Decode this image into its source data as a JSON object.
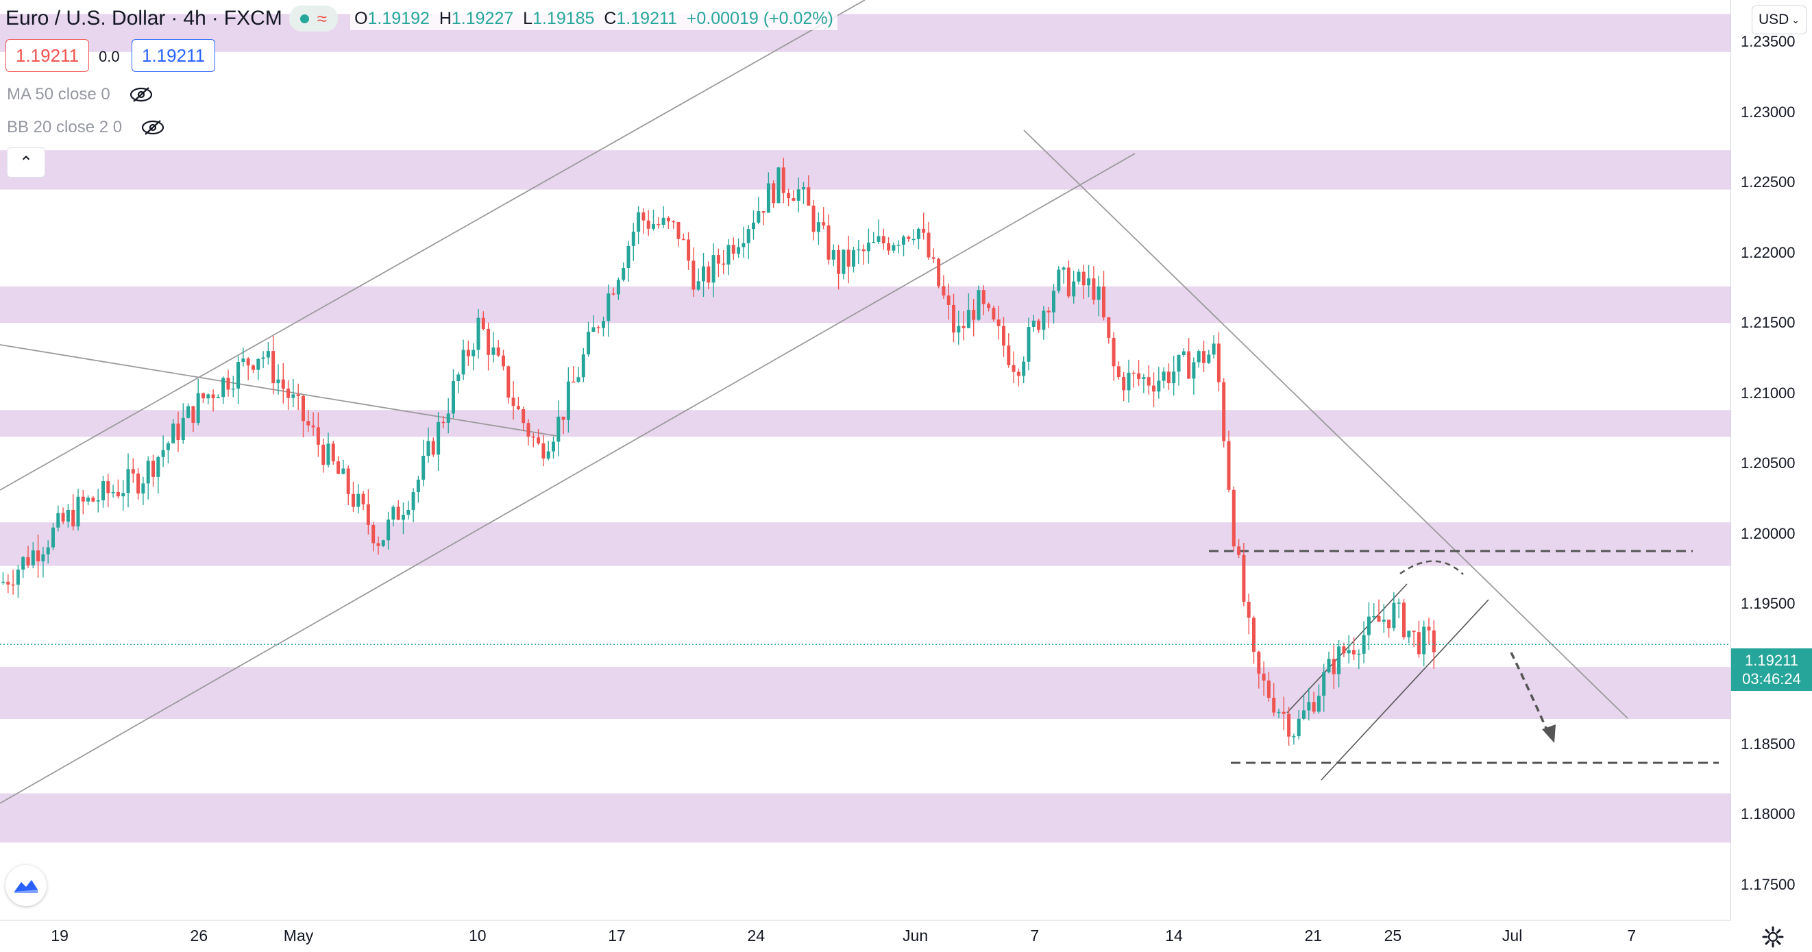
{
  "header": {
    "symbol": "Euro / U.S. Dollar",
    "interval": "4h",
    "exchange": "FXCM",
    "open_label": "O",
    "open": "1.19192",
    "high_label": "H",
    "high": "1.19227",
    "low_label": "L",
    "low": "1.19185",
    "close_label": "C",
    "close": "1.19211",
    "change": "+0.00019 (+0.02%)"
  },
  "trade": {
    "sell_price": "1.19211",
    "spread": "0.0",
    "buy_price": "1.19211"
  },
  "indicators": [
    {
      "label": "MA 50 close 0"
    },
    {
      "label": "BB 20 close 2 0"
    }
  ],
  "price_axis": {
    "currency": "USD",
    "current_price": "1.19211",
    "countdown": "03:46:24",
    "labels": [
      "1.23500",
      "1.23000",
      "1.22500",
      "1.22000",
      "1.21500",
      "1.21000",
      "1.20500",
      "1.20000",
      "1.19500",
      "1.19000",
      "1.18500",
      "1.18000",
      "1.17500"
    ]
  },
  "time_axis": {
    "labels": [
      "19",
      "26",
      "May",
      "10",
      "17",
      "24",
      "Jun",
      "7",
      "14",
      "21",
      "25",
      "Jul",
      "7"
    ]
  },
  "colors": {
    "up": "#26a69a",
    "down": "#ef5350",
    "zone": "#e8d5ee",
    "trendline": "#9b9b9b",
    "dashed": "#555555",
    "price_line": "#26a69a"
  },
  "chart_data": {
    "type": "candlestick",
    "symbol": "EURUSD",
    "timeframe": "4h",
    "ylim": [
      1.1725,
      1.238
    ],
    "zones": [
      [
        1.2343,
        1.237
      ],
      [
        1.2245,
        1.2273
      ],
      [
        1.215,
        1.2176
      ],
      [
        1.2069,
        1.2088
      ],
      [
        1.1977,
        1.2008
      ],
      [
        1.1868,
        1.1905
      ],
      [
        1.178,
        1.1815
      ]
    ],
    "levels": [
      1.19975,
      1.185
    ],
    "current_price": 1.19211,
    "anchors": [
      {
        "date": "2021-04-16",
        "price": 1.1965
      },
      {
        "date": "2021-04-20",
        "price": 1.202
      },
      {
        "date": "2021-04-23",
        "price": 1.204
      },
      {
        "date": "2021-04-26",
        "price": 1.2095
      },
      {
        "date": "2021-04-29",
        "price": 1.213
      },
      {
        "date": "2021-05-03",
        "price": 1.204
      },
      {
        "date": "2021-05-05",
        "price": 1.1995
      },
      {
        "date": "2021-05-07",
        "price": 1.204
      },
      {
        "date": "2021-05-10",
        "price": 1.215
      },
      {
        "date": "2021-05-12",
        "price": 1.2085
      },
      {
        "date": "2021-05-13",
        "price": 1.206
      },
      {
        "date": "2021-05-14",
        "price": 1.208
      },
      {
        "date": "2021-05-18",
        "price": 1.2225
      },
      {
        "date": "2021-05-20",
        "price": 1.2215
      },
      {
        "date": "2021-05-21",
        "price": 1.2175
      },
      {
        "date": "2021-05-25",
        "price": 1.225
      },
      {
        "date": "2021-05-26",
        "price": 1.2245
      },
      {
        "date": "2021-05-28",
        "price": 1.219
      },
      {
        "date": "2021-06-01",
        "price": 1.222
      },
      {
        "date": "2021-06-03",
        "price": 1.214
      },
      {
        "date": "2021-06-04",
        "price": 1.2165
      },
      {
        "date": "2021-06-06",
        "price": 1.212
      },
      {
        "date": "2021-06-08",
        "price": 1.218
      },
      {
        "date": "2021-06-10",
        "price": 1.2175
      },
      {
        "date": "2021-06-11",
        "price": 1.211
      },
      {
        "date": "2021-06-13",
        "price": 1.211
      },
      {
        "date": "2021-06-16",
        "price": 1.213
      },
      {
        "date": "2021-06-17",
        "price": 1.199
      },
      {
        "date": "2021-06-18",
        "price": 1.19
      },
      {
        "date": "2021-06-20",
        "price": 1.186
      },
      {
        "date": "2021-06-22",
        "price": 1.191
      },
      {
        "date": "2021-06-24",
        "price": 1.1935
      },
      {
        "date": "2021-06-25",
        "price": 1.1945
      },
      {
        "date": "2021-06-26",
        "price": 1.1925
      },
      {
        "date": "2021-06-27",
        "price": 1.1921
      }
    ]
  }
}
